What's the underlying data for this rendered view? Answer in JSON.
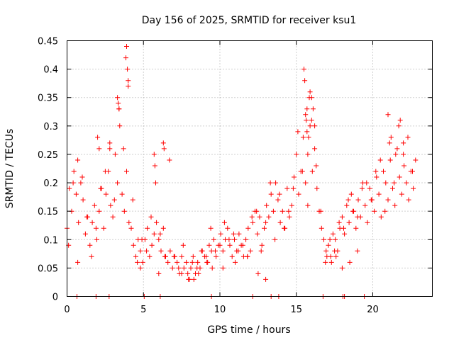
{
  "chart_data": {
    "type": "scatter",
    "title": "Day 156 of 2025, SRMTID for receiver ksu1",
    "xlabel": "GPS time / hours",
    "ylabel": "SRMTID / TECUs",
    "xlim": [
      0,
      23.9
    ],
    "ylim": [
      0,
      0.45
    ],
    "xticks": [
      0,
      5,
      10,
      15,
      20
    ],
    "xtick_labels": [
      "0",
      "5",
      "10",
      "15",
      "20"
    ],
    "yticks": [
      0,
      0.05,
      0.1,
      0.15,
      0.2,
      0.25,
      0.3,
      0.35,
      0.4,
      0.45
    ],
    "ytick_labels": [
      "0",
      "0.05",
      "0.1",
      "0.15",
      "0.2",
      "0.25",
      "0.3",
      "0.35",
      "0.4",
      "0.45"
    ],
    "grid": true,
    "marker": "+",
    "color": "#ff0000",
    "series": [
      {
        "name": "SRMTID",
        "x": [
          0.0,
          0.15,
          0.3,
          0.45,
          0.6,
          0.75,
          0.9,
          1.05,
          1.2,
          1.35,
          1.5,
          1.65,
          1.8,
          1.95,
          2.1,
          2.25,
          2.4,
          2.55,
          2.7,
          2.85,
          3.0,
          3.15,
          3.3,
          3.45,
          3.6,
          3.75,
          3.9,
          4.05,
          4.2,
          4.35,
          4.5,
          4.65,
          4.8,
          4.95,
          5.1,
          5.25,
          5.4,
          5.55,
          5.7,
          5.85,
          6.0,
          6.15,
          6.3,
          6.45,
          6.6,
          6.75,
          6.9,
          7.05,
          7.2,
          7.35,
          7.5,
          7.65,
          7.8,
          7.95,
          8.1,
          8.25,
          8.4,
          8.55,
          8.7,
          8.85,
          9.0,
          9.15,
          9.3,
          9.45,
          9.6,
          9.75,
          9.9,
          10.05,
          10.2,
          10.35,
          10.5,
          10.65,
          10.8,
          10.95,
          11.1,
          11.25,
          11.4,
          11.55,
          11.7,
          11.85,
          12.0,
          12.15,
          12.3,
          12.45,
          12.6,
          12.75,
          12.9,
          13.05,
          13.2,
          13.35,
          13.5,
          13.65,
          13.8,
          13.95,
          14.1,
          14.25,
          14.4,
          14.55,
          14.7,
          14.85,
          15.0,
          15.15,
          15.3,
          15.45,
          15.6,
          15.75,
          15.9,
          16.05,
          16.2,
          16.35,
          16.5,
          16.65,
          16.8,
          16.95,
          17.1,
          17.25,
          17.4,
          17.55,
          17.7,
          17.85,
          18.0,
          18.15,
          18.3,
          18.45,
          18.6,
          18.75,
          18.9,
          19.05,
          19.2,
          19.35,
          19.5,
          19.65,
          19.8,
          19.95,
          20.1,
          20.25,
          20.4,
          20.55,
          20.7,
          20.85,
          21.0,
          21.15,
          21.3,
          21.45,
          21.6,
          21.75,
          21.9,
          22.05,
          22.2,
          22.35,
          22.5,
          22.65,
          22.8,
          0.1,
          0.4,
          0.7,
          1.0,
          1.3,
          1.6,
          1.9,
          2.2,
          2.5,
          2.8,
          3.1,
          3.4,
          3.7,
          4.0,
          4.3,
          4.6,
          4.9,
          5.2,
          5.5,
          5.8,
          6.1,
          6.4,
          6.7,
          7.0,
          7.3,
          7.6,
          7.9,
          8.2,
          8.5,
          8.8,
          9.1,
          9.4,
          9.7,
          10.0,
          10.3,
          10.6,
          10.9,
          11.2,
          11.5,
          11.8,
          12.1,
          12.4,
          12.7,
          13.0,
          13.3,
          13.6,
          13.9,
          14.2,
          14.5,
          14.8,
          15.1,
          15.4,
          15.7,
          16.0,
          16.3,
          16.6,
          16.9,
          17.2,
          17.5,
          17.8,
          18.1,
          18.4,
          18.7,
          19.0,
          19.3,
          19.6,
          19.9,
          20.2,
          20.5,
          20.8,
          21.1,
          21.4,
          21.7,
          22.0,
          22.3,
          22.6,
          2.0,
          2.1,
          3.3,
          3.35,
          3.4,
          3.85,
          3.9,
          3.95,
          4.0,
          5.7,
          5.75,
          6.3,
          6.35,
          15.5,
          15.55,
          15.6,
          15.65,
          15.7,
          15.75,
          15.8,
          15.85,
          15.9,
          16.0,
          16.1,
          16.2,
          21.0,
          21.2,
          21.5,
          21.8,
          22.0,
          0.7,
          2.8,
          4.8,
          6.0,
          7.5,
          8.0,
          8.3,
          8.6,
          9.2,
          9.5,
          10.2,
          11.0,
          11.8,
          12.5,
          13.0,
          17.0,
          17.3,
          17.6,
          18.0,
          18.5,
          19.0,
          0.65,
          1.9,
          2.75,
          5.05,
          6.1,
          9.45,
          12.15,
          13.35,
          13.85,
          16.75,
          18.05,
          18.15,
          19.45
        ],
        "y": [
          0.12,
          0.19,
          0.15,
          0.22,
          0.18,
          0.13,
          0.2,
          0.17,
          0.11,
          0.14,
          0.09,
          0.13,
          0.16,
          0.1,
          0.15,
          0.19,
          0.12,
          0.18,
          0.22,
          0.16,
          0.14,
          0.25,
          0.2,
          0.3,
          0.18,
          0.15,
          0.22,
          0.13,
          0.12,
          0.09,
          0.07,
          0.1,
          0.08,
          0.06,
          0.1,
          0.12,
          0.07,
          0.09,
          0.11,
          0.13,
          0.1,
          0.08,
          0.12,
          0.07,
          0.06,
          0.08,
          0.05,
          0.07,
          0.06,
          0.04,
          0.07,
          0.05,
          0.06,
          0.03,
          0.05,
          0.07,
          0.04,
          0.06,
          0.05,
          0.08,
          0.07,
          0.06,
          0.09,
          0.08,
          0.1,
          0.07,
          0.09,
          0.11,
          0.08,
          0.1,
          0.12,
          0.09,
          0.07,
          0.1,
          0.08,
          0.11,
          0.09,
          0.07,
          0.1,
          0.12,
          0.08,
          0.13,
          0.15,
          0.11,
          0.14,
          0.09,
          0.12,
          0.16,
          0.14,
          0.18,
          0.15,
          0.2,
          0.17,
          0.13,
          0.15,
          0.12,
          0.19,
          0.14,
          0.16,
          0.21,
          0.25,
          0.18,
          0.22,
          0.28,
          0.2,
          0.16,
          0.3,
          0.22,
          0.26,
          0.19,
          0.15,
          0.12,
          0.1,
          0.08,
          0.09,
          0.07,
          0.11,
          0.1,
          0.08,
          0.12,
          0.14,
          0.11,
          0.16,
          0.13,
          0.18,
          0.15,
          0.12,
          0.17,
          0.14,
          0.2,
          0.16,
          0.13,
          0.19,
          0.17,
          0.15,
          0.21,
          0.18,
          0.14,
          0.22,
          0.2,
          0.17,
          0.24,
          0.19,
          0.16,
          0.26,
          0.21,
          0.18,
          0.23,
          0.2,
          0.17,
          0.22,
          0.19,
          0.24,
          0.09,
          0.2,
          0.24,
          0.21,
          0.14,
          0.07,
          0.12,
          0.19,
          0.22,
          0.27,
          0.17,
          0.33,
          0.26,
          0.38,
          0.17,
          0.06,
          0.1,
          0.08,
          0.14,
          0.2,
          0.11,
          0.07,
          0.24,
          0.07,
          0.05,
          0.09,
          0.04,
          0.06,
          0.05,
          0.08,
          0.07,
          0.12,
          0.08,
          0.09,
          0.13,
          0.1,
          0.11,
          0.08,
          0.09,
          0.07,
          0.14,
          0.15,
          0.08,
          0.13,
          0.2,
          0.1,
          0.18,
          0.12,
          0.15,
          0.19,
          0.29,
          0.22,
          0.33,
          0.35,
          0.23,
          0.15,
          0.06,
          0.1,
          0.08,
          0.13,
          0.12,
          0.17,
          0.15,
          0.14,
          0.19,
          0.2,
          0.17,
          0.22,
          0.24,
          0.15,
          0.27,
          0.2,
          0.3,
          0.25,
          0.28,
          0.22,
          0.28,
          0.26,
          0.35,
          0.34,
          0.33,
          0.42,
          0.44,
          0.4,
          0.37,
          0.25,
          0.23,
          0.27,
          0.26,
          0.4,
          0.38,
          0.32,
          0.31,
          0.29,
          0.25,
          0.28,
          0.35,
          0.36,
          0.31,
          0.33,
          0.3,
          0.32,
          0.28,
          0.25,
          0.31,
          0.27,
          0.06,
          0.26,
          0.05,
          0.04,
          0.04,
          0.03,
          0.03,
          0.04,
          0.06,
          0.05,
          0.05,
          0.06,
          0.07,
          0.04,
          0.03,
          0.07,
          0.06,
          0.07,
          0.05,
          0.06,
          0.08,
          0,
          0,
          0,
          0,
          0,
          0,
          0,
          0,
          0,
          0,
          0,
          0,
          0
        ]
      }
    ]
  }
}
